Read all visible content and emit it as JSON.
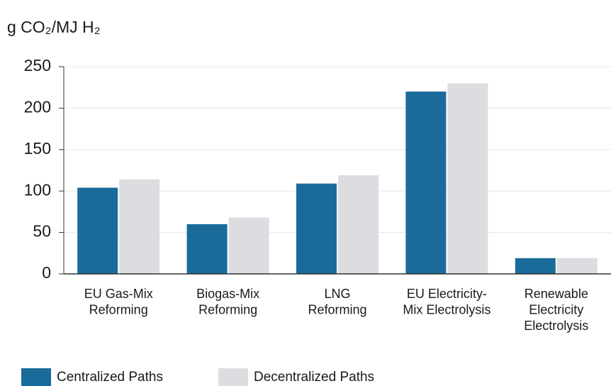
{
  "chart_data": {
    "type": "bar",
    "y_label": "g CO₂/MJ H₂",
    "categories": [
      "EU Gas-Mix\nReforming",
      "Biogas-Mix\nReforming",
      "LNG\nReforming",
      "EU Electricity-\nMix Electrolysis",
      "Renewable\nElectricity\nElectrolysis"
    ],
    "series": [
      {
        "name": "Centralized Paths",
        "color": "#1a6b9a",
        "values": [
          104,
          60,
          109,
          220,
          19
        ]
      },
      {
        "name": "Decentralized Paths",
        "color": "#dcdde0",
        "values": [
          114,
          68,
          119,
          230,
          19
        ]
      }
    ],
    "ylim": [
      0,
      250
    ],
    "yticks": [
      0,
      50,
      100,
      150,
      200,
      250
    ],
    "grid": true,
    "legend": "bottom"
  }
}
